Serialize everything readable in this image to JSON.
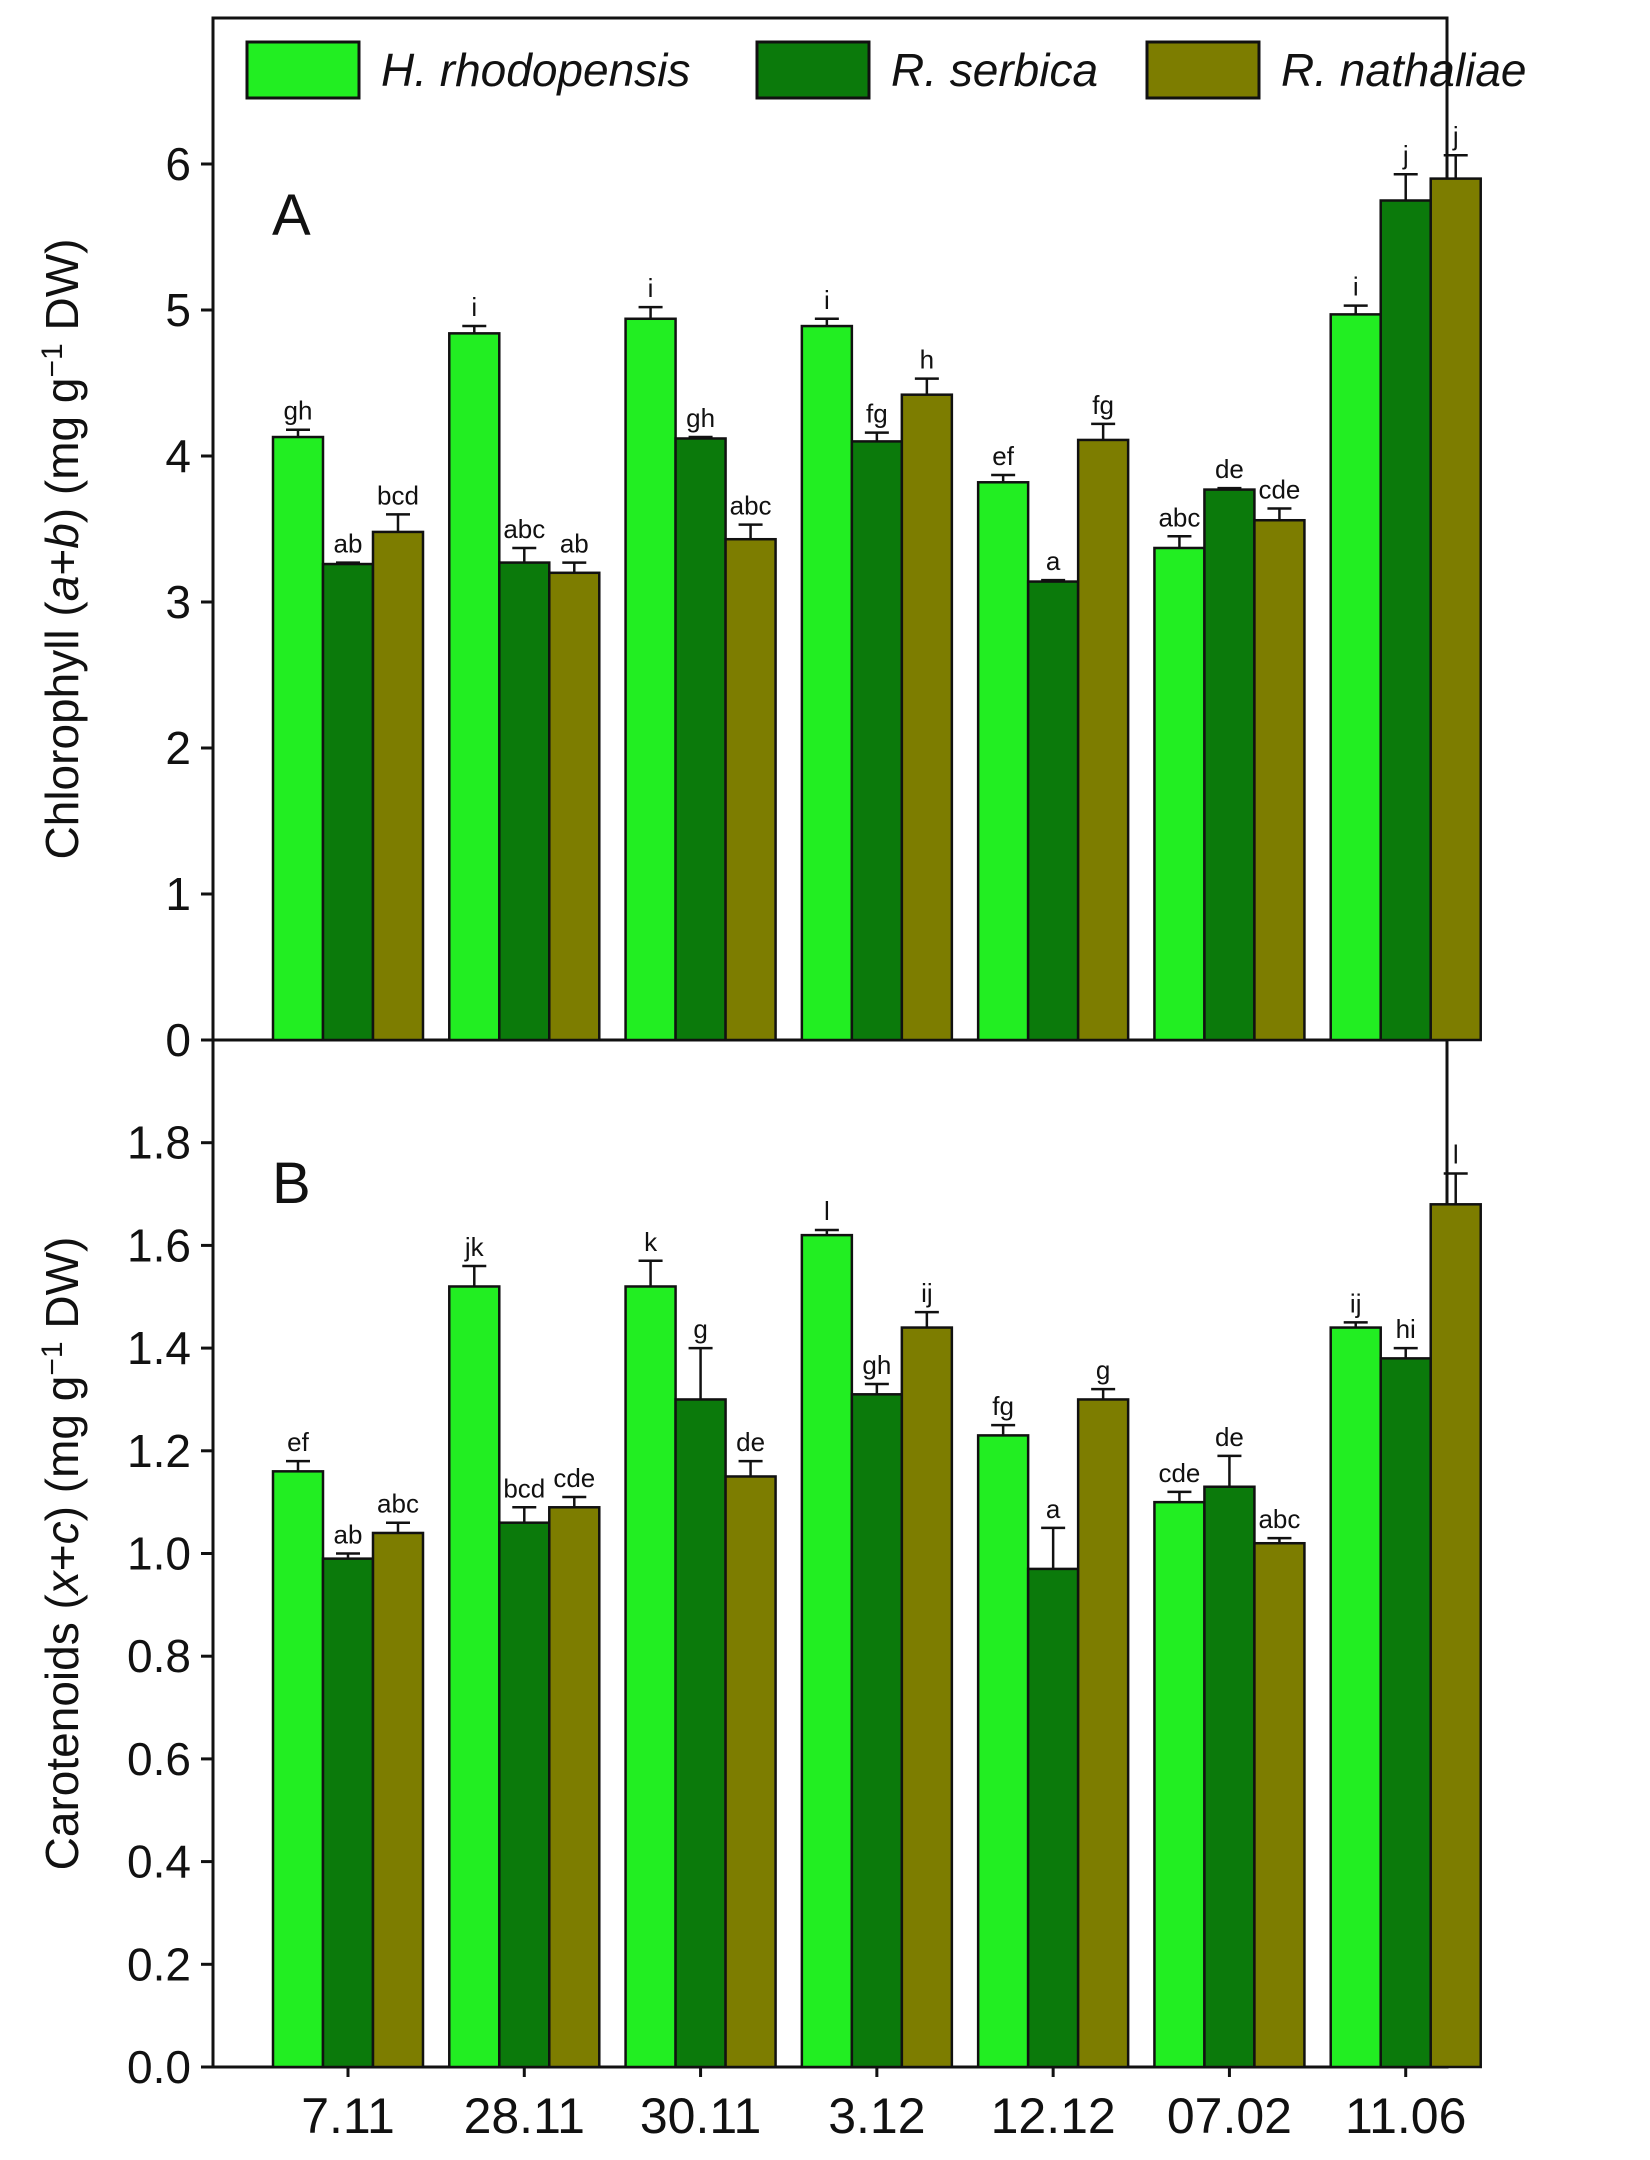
{
  "chart_data": {
    "type": "bar",
    "categories": [
      "7.11",
      "28.11",
      "30.11",
      "3.12",
      "12.12",
      "07.02",
      "11.06"
    ],
    "legend": {
      "placement": "top",
      "entries": [
        {
          "name": "H. rhodopensis",
          "color": "#22ee22"
        },
        {
          "name": "R. serbica",
          "color": "#0b7a0b"
        },
        {
          "name": "R. nathaliae",
          "color": "#7d7d00"
        }
      ]
    },
    "panels": [
      {
        "id": "A",
        "label": "A",
        "ylabel": {
          "pre": "Chlorophyll (",
          "italic1": "a",
          "mid": "+",
          "italic2": "b",
          "post": ") (mg g",
          "sup": "−1",
          "end": " DW)"
        },
        "ylim": [
          0,
          7
        ],
        "yticks": [
          0,
          1,
          2,
          3,
          4,
          5,
          6
        ],
        "ytick_labels": [
          "0",
          "1",
          "2",
          "3",
          "4",
          "5",
          "6"
        ],
        "series": [
          {
            "name": "H. rhodopensis",
            "values": [
              4.13,
              4.84,
              4.94,
              4.89,
              3.82,
              3.37,
              4.97
            ],
            "errors": [
              0.05,
              0.05,
              0.08,
              0.05,
              0.05,
              0.08,
              0.06
            ],
            "letters": [
              "gh",
              "i",
              "i",
              "i",
              "ef",
              "abc",
              "i"
            ]
          },
          {
            "name": "R. serbica",
            "values": [
              3.26,
              3.27,
              4.12,
              4.1,
              3.14,
              3.77,
              5.75
            ],
            "errors": [
              0.01,
              0.1,
              0.01,
              0.06,
              0.01,
              0.01,
              0.18
            ],
            "letters": [
              "ab",
              "abc",
              "gh",
              "fg",
              "a",
              "de",
              "j"
            ]
          },
          {
            "name": "R. nathaliae",
            "values": [
              3.48,
              3.2,
              3.43,
              4.42,
              4.11,
              3.56,
              5.9
            ],
            "errors": [
              0.12,
              0.07,
              0.1,
              0.11,
              0.11,
              0.08,
              0.16
            ],
            "letters": [
              "bcd",
              "ab",
              "abc",
              "h",
              "fg",
              "cde",
              "j"
            ]
          }
        ]
      },
      {
        "id": "B",
        "label": "B",
        "ylabel": {
          "pre": "Carotenoids (",
          "italic1": "x",
          "mid": "+",
          "italic2": "c",
          "post": ") (mg g",
          "sup": "−1",
          "end": " DW)"
        },
        "ylim": [
          0,
          2.0
        ],
        "yticks": [
          0.0,
          0.2,
          0.4,
          0.6,
          0.8,
          1.0,
          1.2,
          1.4,
          1.6,
          1.8
        ],
        "ytick_labels": [
          "0.0",
          "0.2",
          "0.4",
          "0.6",
          "0.8",
          "1.0",
          "1.2",
          "1.4",
          "1.6",
          "1.8"
        ],
        "series": [
          {
            "name": "H. rhodopensis",
            "values": [
              1.16,
              1.52,
              1.52,
              1.62,
              1.23,
              1.1,
              1.44
            ],
            "errors": [
              0.02,
              0.04,
              0.05,
              0.01,
              0.02,
              0.02,
              0.01
            ],
            "letters": [
              "ef",
              "jk",
              "k",
              "l",
              "fg",
              "cde",
              "ij"
            ]
          },
          {
            "name": "R. serbica",
            "values": [
              0.99,
              1.06,
              1.3,
              1.31,
              0.97,
              1.13,
              1.38
            ],
            "errors": [
              0.01,
              0.03,
              0.1,
              0.02,
              0.08,
              0.06,
              0.02
            ],
            "letters": [
              "ab",
              "bcd",
              "g",
              "gh",
              "a",
              "de",
              "hi"
            ]
          },
          {
            "name": "R. nathaliae",
            "values": [
              1.04,
              1.09,
              1.15,
              1.44,
              1.3,
              1.02,
              1.68
            ],
            "errors": [
              0.02,
              0.02,
              0.03,
              0.03,
              0.02,
              0.01,
              0.06
            ],
            "letters": [
              "abc",
              "cde",
              "de",
              "ij",
              "g",
              "abc",
              "l"
            ]
          }
        ]
      }
    ]
  }
}
